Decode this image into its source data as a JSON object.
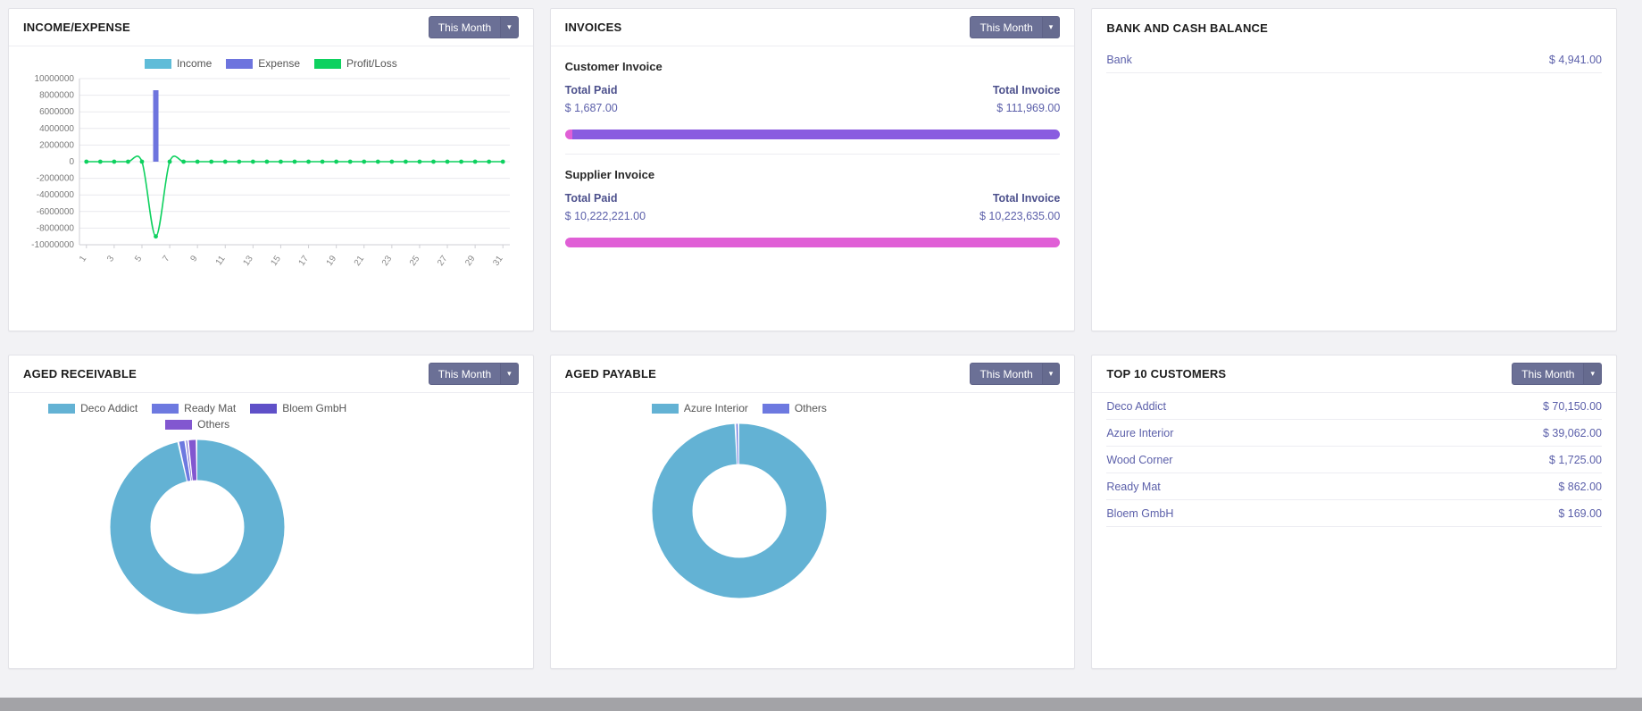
{
  "theme": {
    "background": "#f2f2f5",
    "card_border": "#e3e3e8",
    "accent_text": "#5c60aa",
    "label_text": "#4c508c",
    "button_bg": "#6b7096",
    "invoice_paid_color": "#e05fd6",
    "invoice_due_color": "#8a5ce0",
    "footer_strip": "#a3a3a7"
  },
  "panels": {
    "income_expense": {
      "title": "INCOME/EXPENSE",
      "filter_label": "This Month"
    },
    "invoices": {
      "title": "INVOICES",
      "filter_label": "This Month",
      "customer": {
        "heading": "Customer Invoice",
        "paid_label": "Total Paid",
        "paid_value": "$ 1,687.00",
        "paid_amount": 1687,
        "invoice_label": "Total Invoice",
        "invoice_value": "$ 111,969.00",
        "invoice_amount": 111969
      },
      "supplier": {
        "heading": "Supplier Invoice",
        "paid_label": "Total Paid",
        "paid_value": "$ 10,222,221.00",
        "paid_amount": 10222221,
        "invoice_label": "Total Invoice",
        "invoice_value": "$ 10,223,635.00",
        "invoice_amount": 10223635
      }
    },
    "bank": {
      "title": "BANK AND CASH BALANCE",
      "rows": [
        {
          "label": "Bank",
          "value": "$ 4,941.00"
        }
      ]
    },
    "aged_receivable": {
      "title": "AGED RECEIVABLE",
      "filter_label": "This Month"
    },
    "aged_payable": {
      "title": "AGED PAYABLE",
      "filter_label": "This Month"
    },
    "top_customers": {
      "title": "TOP 10 CUSTOMERS",
      "filter_label": "This Month",
      "rows": [
        {
          "label": "Deco Addict",
          "value": "$ 70,150.00"
        },
        {
          "label": "Azure Interior",
          "value": "$ 39,062.00"
        },
        {
          "label": "Wood Corner",
          "value": "$ 1,725.00"
        },
        {
          "label": "Ready Mat",
          "value": "$ 862.00"
        },
        {
          "label": "Bloem GmbH",
          "value": "$ 169.00"
        }
      ]
    }
  },
  "chart_data": [
    {
      "id": "income-expense",
      "type": "bar",
      "title": "INCOME/EXPENSE",
      "xlabel": "",
      "ylabel": "",
      "ylim": [
        -10000000,
        10000000
      ],
      "y_ticks": [
        10000000,
        8000000,
        6000000,
        4000000,
        2000000,
        0,
        -2000000,
        -4000000,
        -6000000,
        -8000000,
        -10000000
      ],
      "x": [
        1,
        2,
        3,
        4,
        5,
        6,
        7,
        8,
        9,
        10,
        11,
        12,
        13,
        14,
        15,
        16,
        17,
        18,
        19,
        20,
        21,
        22,
        23,
        24,
        25,
        26,
        27,
        28,
        29,
        30,
        31
      ],
      "x_tick_labels": [
        "1",
        "3",
        "5",
        "7",
        "9",
        "11",
        "13",
        "15",
        "17",
        "19",
        "21",
        "23",
        "25",
        "27",
        "29",
        "31"
      ],
      "grid": true,
      "legend_position": "top",
      "series": [
        {
          "name": "Income",
          "type": "bar",
          "color": "#5fbcd8",
          "values": [
            0,
            0,
            0,
            0,
            0,
            0,
            0,
            0,
            0,
            0,
            0,
            0,
            0,
            0,
            0,
            0,
            0,
            0,
            0,
            0,
            0,
            0,
            0,
            0,
            0,
            0,
            0,
            0,
            0,
            0,
            0
          ]
        },
        {
          "name": "Expense",
          "type": "bar",
          "color": "#6d74de",
          "values": [
            0,
            0,
            0,
            0,
            0,
            8600000,
            0,
            0,
            0,
            0,
            0,
            0,
            0,
            0,
            0,
            0,
            0,
            0,
            0,
            0,
            0,
            0,
            0,
            0,
            0,
            0,
            0,
            0,
            0,
            0,
            0
          ]
        },
        {
          "name": "Profit/Loss",
          "type": "line",
          "color": "#0ed15f",
          "values": [
            0,
            0,
            0,
            0,
            0,
            -9000000,
            0,
            0,
            0,
            0,
            0,
            0,
            0,
            0,
            0,
            0,
            0,
            0,
            0,
            0,
            0,
            0,
            0,
            0,
            0,
            0,
            0,
            0,
            0,
            0,
            0
          ]
        }
      ]
    },
    {
      "id": "aged-receivable",
      "type": "pie",
      "donut": true,
      "title": "AGED RECEIVABLE",
      "labels": [
        "Deco Addict",
        "Ready Mat",
        "Bloem GmbH",
        "Others"
      ],
      "values": [
        96.6,
        1.3,
        0.5,
        1.6
      ],
      "colors": [
        "#63b2d4",
        "#6d79e0",
        "#5f50c8",
        "#8257d0"
      ],
      "legend_position": "top"
    },
    {
      "id": "aged-payable",
      "type": "pie",
      "donut": true,
      "title": "AGED PAYABLE",
      "labels": [
        "Azure Interior",
        "Others"
      ],
      "values": [
        99.4,
        0.6
      ],
      "colors": [
        "#63b2d4",
        "#6d79e0"
      ],
      "legend_position": "top"
    }
  ]
}
